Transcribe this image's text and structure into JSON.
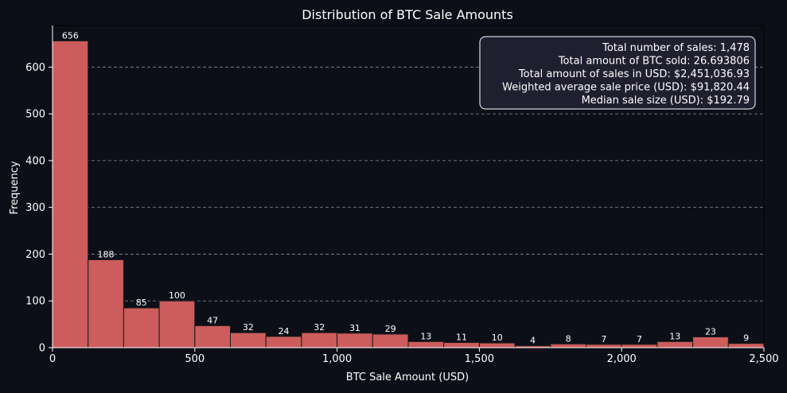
{
  "chart_data": {
    "type": "bar",
    "title": "Distribution of BTC Sale Amounts",
    "xlabel": "BTC Sale Amount (USD)",
    "ylabel": "Frequency",
    "xlim": [
      0,
      2500
    ],
    "ylim": [
      0,
      689
    ],
    "bin_edges": [
      0,
      125,
      250,
      375,
      500,
      625,
      750,
      875,
      1000,
      1125,
      1250,
      1375,
      1500,
      1625,
      1750,
      1875,
      2000,
      2125,
      2250,
      2375,
      2500
    ],
    "values": [
      656,
      188,
      85,
      100,
      47,
      32,
      24,
      32,
      31,
      29,
      13,
      11,
      10,
      4,
      8,
      7,
      7,
      13,
      23,
      9
    ],
    "x_ticks": [
      0,
      500,
      1000,
      1500,
      2000,
      2500
    ],
    "x_tick_labels": [
      "0",
      "500",
      "1,000",
      "1,500",
      "2,000",
      "2,500"
    ],
    "y_ticks": [
      0,
      100,
      200,
      300,
      400,
      500,
      600
    ],
    "y_tick_labels": [
      "0",
      "100",
      "200",
      "300",
      "400",
      "500",
      "600"
    ],
    "grid": "y-dashed",
    "legend_placement": "top-right",
    "stats_box": [
      "Total number of sales: 1,478",
      "Total amount of BTC sold: 26.693806",
      "Total amount of sales in USD: $2,451,036.93",
      "Weighted average sale price (USD): $91,820.44",
      "Median sale size (USD): $192.79"
    ]
  },
  "colors": {
    "background": "#0c0f17",
    "bar_fill": "#cd5c5c",
    "bar_edge": "#1a1a1a",
    "text": "#ffffff",
    "grid": "#8a8f99",
    "stats_box_fill": "#1f1f30",
    "stats_box_edge": "#ffffff"
  }
}
